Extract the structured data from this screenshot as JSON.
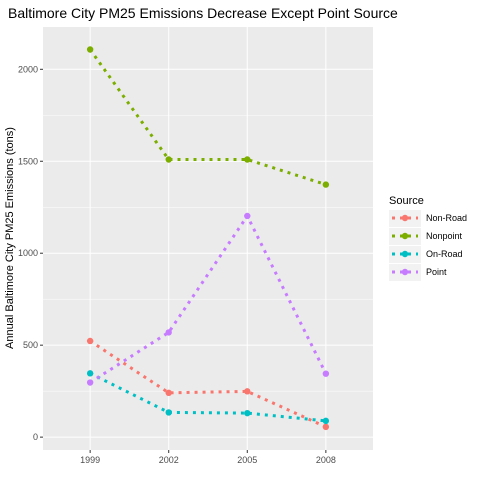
{
  "chart_data": {
    "type": "line",
    "title": "Baltimore City PM25 Emissions Decrease Except Point Source",
    "xlabel": "",
    "ylabel": "Annual Baltimore City PM25 Emissions (tons)",
    "x": [
      "1999",
      "2002",
      "2005",
      "2008"
    ],
    "ylim": [
      -70,
      2230
    ],
    "yticks": [
      0,
      500,
      1000,
      1500,
      2000
    ],
    "grid": true,
    "background": "#ebebeb",
    "line_style": "dotted",
    "legend": {
      "title": "Source",
      "placement": "right"
    },
    "series": [
      {
        "name": "Non-Road",
        "color": "#f8766d",
        "values": [
          522.9,
          240.8,
          248.9,
          55.8
        ]
      },
      {
        "name": "Nonpoint",
        "color": "#7cae00",
        "values": [
          2107.6,
          1509.5,
          1509.5,
          1373.2
        ]
      },
      {
        "name": "On-Road",
        "color": "#00bfc4",
        "values": [
          346.8,
          134.3,
          130.4,
          88.3
        ]
      },
      {
        "name": "Point",
        "color": "#c77cff",
        "values": [
          296.8,
          569.3,
          1202.5,
          344.98
        ]
      }
    ]
  }
}
